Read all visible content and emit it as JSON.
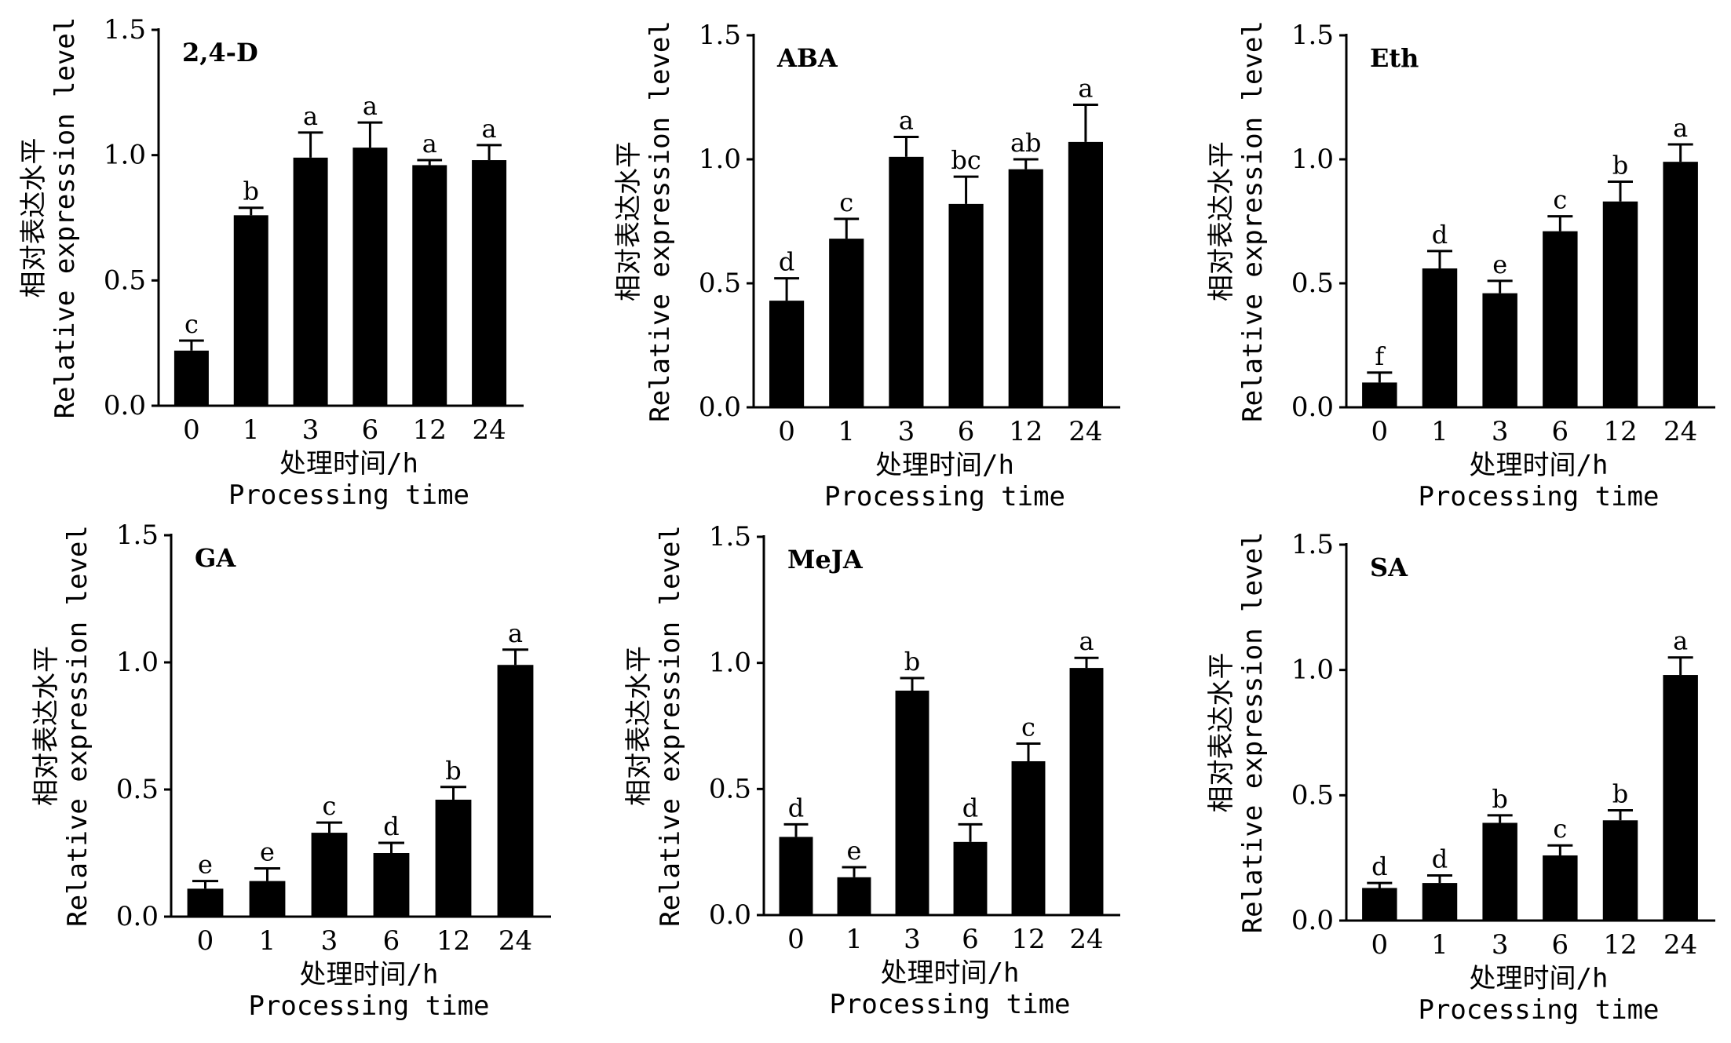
{
  "chart_data": [
    {
      "type": "bar",
      "title": "2,4-D",
      "categories": [
        "0",
        "1",
        "3",
        "6",
        "12",
        "24"
      ],
      "values": [
        0.22,
        0.76,
        0.99,
        1.03,
        0.96,
        0.98
      ],
      "errors": [
        0.04,
        0.03,
        0.1,
        0.1,
        0.02,
        0.06
      ],
      "letters": [
        "c",
        "b",
        "a",
        "a",
        "a",
        "a"
      ],
      "ylabel_cn": "相对表达水平",
      "ylabel_en": "Relative expression level",
      "xlabel_cn": "处理时间/h",
      "xlabel_en": "Processing time",
      "ylim": [
        0,
        1.5
      ],
      "yticks": [
        "0.0",
        "0.5",
        "1.0",
        "1.5"
      ],
      "bar_color": "#000000"
    },
    {
      "type": "bar",
      "title": "ABA",
      "categories": [
        "0",
        "1",
        "3",
        "6",
        "12",
        "24"
      ],
      "values": [
        0.43,
        0.68,
        1.01,
        0.82,
        0.96,
        1.07
      ],
      "errors": [
        0.09,
        0.08,
        0.08,
        0.11,
        0.04,
        0.15
      ],
      "letters": [
        "d",
        "c",
        "a",
        "bc",
        "ab",
        "a"
      ],
      "ylabel_cn": "相对表达水平",
      "ylabel_en": "Relative expression level",
      "xlabel_cn": "处理时间/h",
      "xlabel_en": "Processing time",
      "ylim": [
        0,
        1.5
      ],
      "yticks": [
        "0.0",
        "0.5",
        "1.0",
        "1.5"
      ],
      "bar_color": "#000000"
    },
    {
      "type": "bar",
      "title": "Eth",
      "categories": [
        "0",
        "1",
        "3",
        "6",
        "12",
        "24"
      ],
      "values": [
        0.1,
        0.56,
        0.46,
        0.71,
        0.83,
        0.99
      ],
      "errors": [
        0.04,
        0.07,
        0.05,
        0.06,
        0.08,
        0.07
      ],
      "letters": [
        "f",
        "d",
        "e",
        "c",
        "b",
        "a"
      ],
      "ylabel_cn": "相对表达水平",
      "ylabel_en": "Relative expression level",
      "xlabel_cn": "处理时间/h",
      "xlabel_en": "Processing time",
      "ylim": [
        0,
        1.5
      ],
      "yticks": [
        "0.0",
        "0.5",
        "1.0",
        "1.5"
      ],
      "bar_color": "#000000"
    },
    {
      "type": "bar",
      "title": "GA",
      "categories": [
        "0",
        "1",
        "3",
        "6",
        "12",
        "24"
      ],
      "values": [
        0.11,
        0.14,
        0.33,
        0.25,
        0.46,
        0.99
      ],
      "errors": [
        0.03,
        0.05,
        0.04,
        0.04,
        0.05,
        0.06
      ],
      "letters": [
        "e",
        "e",
        "c",
        "d",
        "b",
        "a"
      ],
      "ylabel_cn": "相对表达水平",
      "ylabel_en": "Relative expression level",
      "xlabel_cn": "处理时间/h",
      "xlabel_en": "Processing time",
      "ylim": [
        0,
        1.5
      ],
      "yticks": [
        "0.0",
        "0.5",
        "1.0",
        "1.5"
      ],
      "bar_color": "#000000"
    },
    {
      "type": "bar",
      "title": "MeJA",
      "categories": [
        "0",
        "1",
        "3",
        "6",
        "12",
        "24"
      ],
      "values": [
        0.31,
        0.15,
        0.89,
        0.29,
        0.61,
        0.98
      ],
      "errors": [
        0.05,
        0.04,
        0.05,
        0.07,
        0.07,
        0.04
      ],
      "letters": [
        "d",
        "e",
        "b",
        "d",
        "c",
        "a"
      ],
      "ylabel_cn": "相对表达水平",
      "ylabel_en": "Relative expression level",
      "xlabel_cn": "处理时间/h",
      "xlabel_en": "Processing time",
      "ylim": [
        0,
        1.5
      ],
      "yticks": [
        "0.0",
        "0.5",
        "1.0",
        "1.5"
      ],
      "bar_color": "#000000"
    },
    {
      "type": "bar",
      "title": "SA",
      "categories": [
        "0",
        "1",
        "3",
        "6",
        "12",
        "24"
      ],
      "values": [
        0.13,
        0.15,
        0.39,
        0.26,
        0.4,
        0.98
      ],
      "errors": [
        0.02,
        0.03,
        0.03,
        0.04,
        0.04,
        0.07
      ],
      "letters": [
        "d",
        "d",
        "b",
        "c",
        "b",
        "a"
      ],
      "ylabel_cn": "相对表达水平",
      "ylabel_en": "Relative expression level",
      "xlabel_cn": "处理时间/h",
      "xlabel_en": "Processing time",
      "ylim": [
        0,
        1.5
      ],
      "yticks": [
        "0.0",
        "0.5",
        "1.0",
        "1.5"
      ],
      "bar_color": "#000000"
    }
  ]
}
